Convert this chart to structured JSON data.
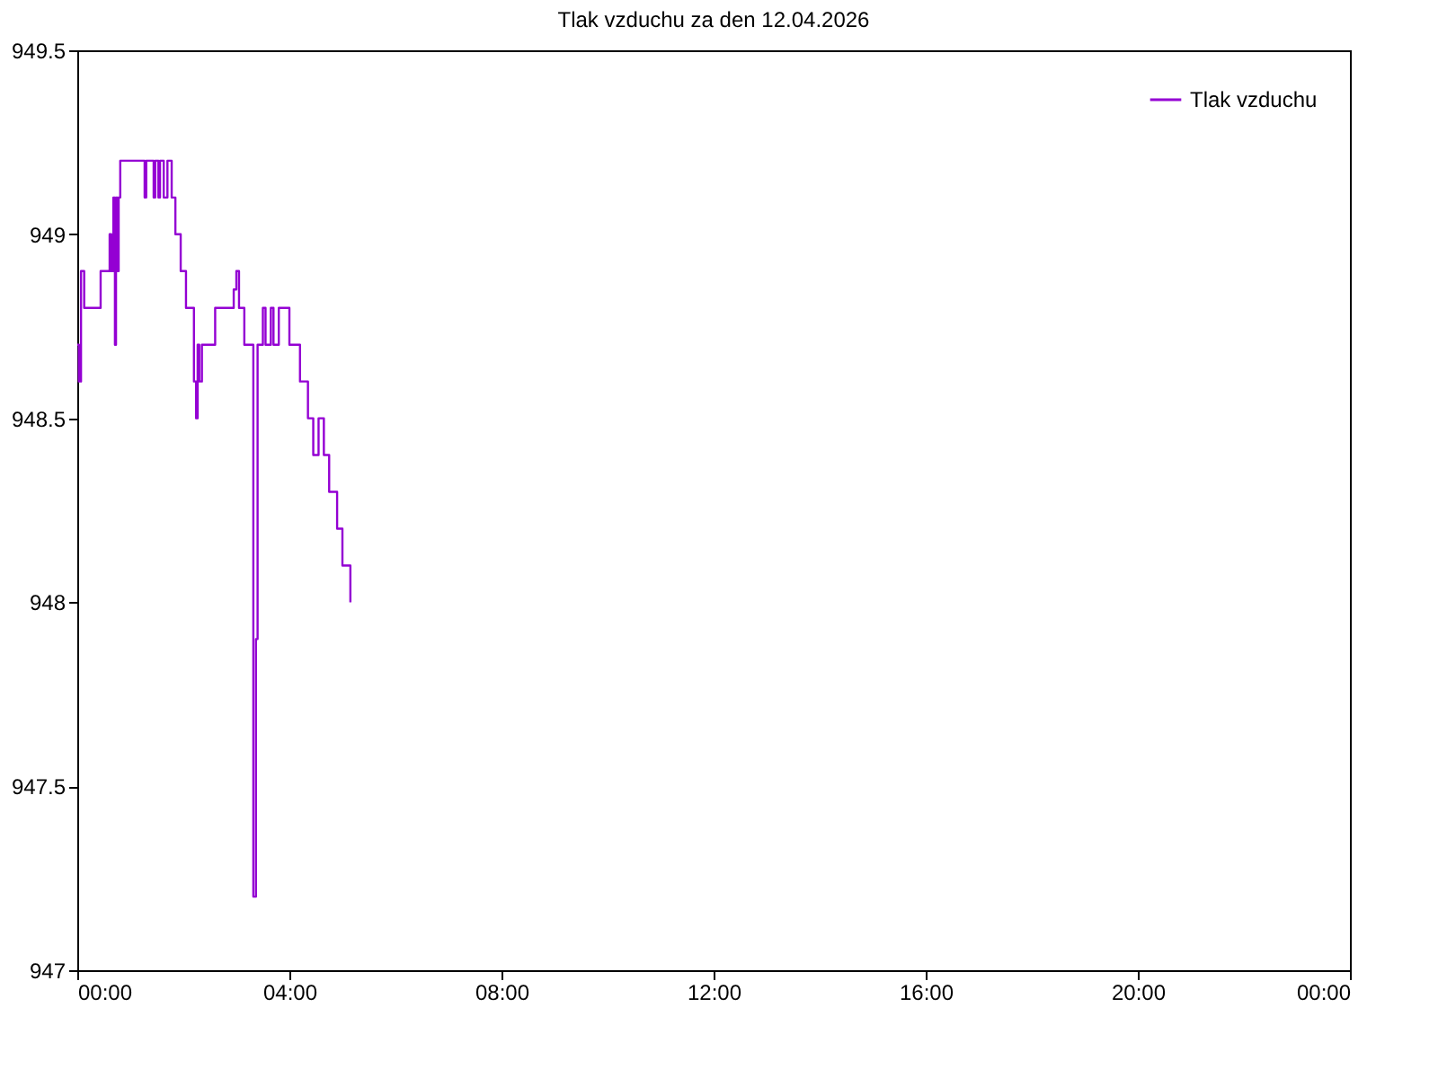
{
  "chart_data": {
    "type": "step",
    "title": "Tlak vzduchu za den 12.04.2026",
    "x": [
      0,
      0.03,
      0.07,
      0.13,
      0.44,
      0.61,
      0.64,
      0.68,
      0.71,
      0.73,
      0.76,
      0.78,
      0.81,
      1.27,
      1.3,
      1.44,
      1.47,
      1.53,
      1.56,
      1.63,
      1.7,
      1.78,
      1.85,
      1.95,
      2.05,
      2.2,
      2.24,
      2.27,
      2.3,
      2.35,
      2.6,
      2.95,
      3.0,
      3.05,
      3.15,
      3.32,
      3.37,
      3.4,
      3.5,
      3.55,
      3.65,
      3.7,
      3.8,
      4.0,
      4.2,
      4.35,
      4.45,
      4.55,
      4.65,
      4.75,
      4.9,
      5.0,
      5.15
    ],
    "series": [
      {
        "name": "Tlak vzduchu",
        "color": "#9400d3",
        "values": [
          948.7,
          948.6,
          948.9,
          948.8,
          948.9,
          949.0,
          948.9,
          949.1,
          948.7,
          949.1,
          948.9,
          949.1,
          949.2,
          949.1,
          949.2,
          949.1,
          949.2,
          949.1,
          949.2,
          949.1,
          949.2,
          949.1,
          949.0,
          948.9,
          948.8,
          948.6,
          948.5,
          948.7,
          948.6,
          948.7,
          948.8,
          948.85,
          948.9,
          948.8,
          948.7,
          947.2,
          947.9,
          948.7,
          948.8,
          948.7,
          948.8,
          948.7,
          948.8,
          948.7,
          948.6,
          948.5,
          948.4,
          948.5,
          948.4,
          948.3,
          948.2,
          948.1,
          948.0
        ]
      }
    ],
    "xlim": [
      0,
      24
    ],
    "xticks": [
      {
        "value": 0,
        "label": "00:00"
      },
      {
        "value": 4,
        "label": "04:00"
      },
      {
        "value": 8,
        "label": "08:00"
      },
      {
        "value": 12,
        "label": "12:00"
      },
      {
        "value": 16,
        "label": "16:00"
      },
      {
        "value": 20,
        "label": "20:00"
      },
      {
        "value": 24,
        "label": "00:00"
      }
    ],
    "ylim": [
      947,
      949.5
    ],
    "yticks": [
      947,
      947.5,
      948,
      948.5,
      949,
      949.5
    ],
    "legend": "top right",
    "grid": false,
    "line_style": "solid"
  }
}
